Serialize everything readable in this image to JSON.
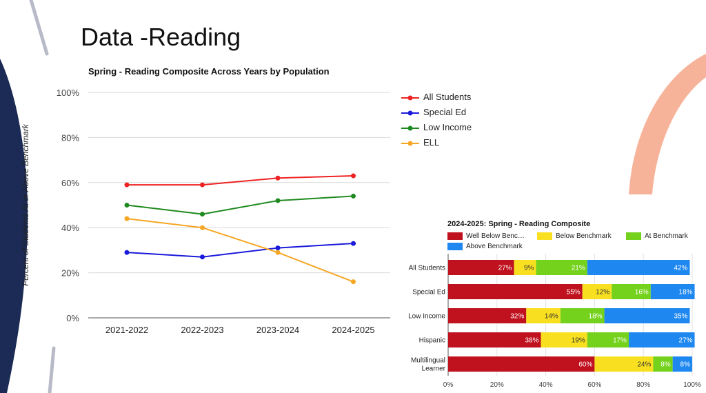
{
  "slide": {
    "title": "Data -Reading"
  },
  "colors": {
    "all_students": "#ee2222",
    "special_ed": "#1a1adb",
    "low_income": "#1f8a1f",
    "ell": "#f5a623",
    "well_below": "#c0111f",
    "below": "#f8e021",
    "at": "#74d21c",
    "above": "#1e88f0",
    "navy": "#1b2b55",
    "salmon": "#f7b399",
    "gray_stroke": "#b8bac8"
  },
  "chart_data": [
    {
      "type": "line",
      "title": "Spring - Reading Composite Across Years by Population",
      "ylabel": "Percent of Students At or Above Benchmark",
      "xlabel": "",
      "x": [
        "2021-2022",
        "2022-2023",
        "2023-2024",
        "2024-2025"
      ],
      "ylim": [
        0,
        100
      ],
      "yticks": [
        "0%",
        "20%",
        "40%",
        "60%",
        "80%",
        "100%"
      ],
      "ytick_values": [
        0,
        20,
        40,
        60,
        80,
        100
      ],
      "legend_position": "right",
      "series": [
        {
          "name": "All Students",
          "color_key": "all_students",
          "values": [
            59,
            59,
            62,
            63
          ]
        },
        {
          "name": "Special Ed",
          "color_key": "special_ed",
          "values": [
            29,
            27,
            31,
            33
          ]
        },
        {
          "name": "Low Income",
          "color_key": "low_income",
          "values": [
            50,
            46,
            52,
            54
          ]
        },
        {
          "name": "ELL",
          "color_key": "ell",
          "values": [
            44,
            40,
            29,
            16
          ]
        }
      ]
    },
    {
      "type": "bar",
      "orientation": "horizontal-stacked",
      "title": "2024-2025: Spring - Reading Composite",
      "categories": [
        "All Students",
        "Special Ed",
        "Low Income",
        "Hispanic",
        "Multilingual Learner"
      ],
      "category_lines": [
        [
          "All Students"
        ],
        [
          "Special Ed"
        ],
        [
          "Low Income"
        ],
        [
          "Hispanic"
        ],
        [
          "Multilingual",
          "Learner"
        ]
      ],
      "xlim": [
        0,
        100
      ],
      "xticks": [
        "0%",
        "20%",
        "40%",
        "60%",
        "80%",
        "100%"
      ],
      "xtick_values": [
        0,
        20,
        40,
        60,
        80,
        100
      ],
      "legend_position": "top",
      "series": [
        {
          "name": "Well Below Benchmark",
          "legend_label": "Well Below Benc…",
          "color_key": "well_below",
          "label_color": "#ffffff",
          "values": [
            27,
            55,
            32,
            38,
            60
          ],
          "labels": [
            "27%",
            "55%",
            "32%",
            "38%",
            "60%"
          ]
        },
        {
          "name": "Below Benchmark",
          "legend_label": "Below Benchmark",
          "color_key": "below",
          "label_color": "#333333",
          "values": [
            9,
            12,
            14,
            19,
            24
          ],
          "labels": [
            "9%",
            "12%",
            "14%",
            "19%",
            "24%"
          ]
        },
        {
          "name": "At Benchmark",
          "legend_label": "At Benchmark",
          "color_key": "at",
          "label_color": "#ffffff",
          "values": [
            21,
            16,
            18,
            17,
            8
          ],
          "labels": [
            "21%",
            "16%",
            "18%",
            "17%",
            "8%"
          ]
        },
        {
          "name": "Above Benchmark",
          "legend_label": "Above Benchmark",
          "color_key": "above",
          "label_color": "#ffffff",
          "values": [
            42,
            18,
            35,
            27,
            8
          ],
          "labels": [
            "42%",
            "18%",
            "35%",
            "27%",
            "8%"
          ]
        }
      ]
    }
  ]
}
